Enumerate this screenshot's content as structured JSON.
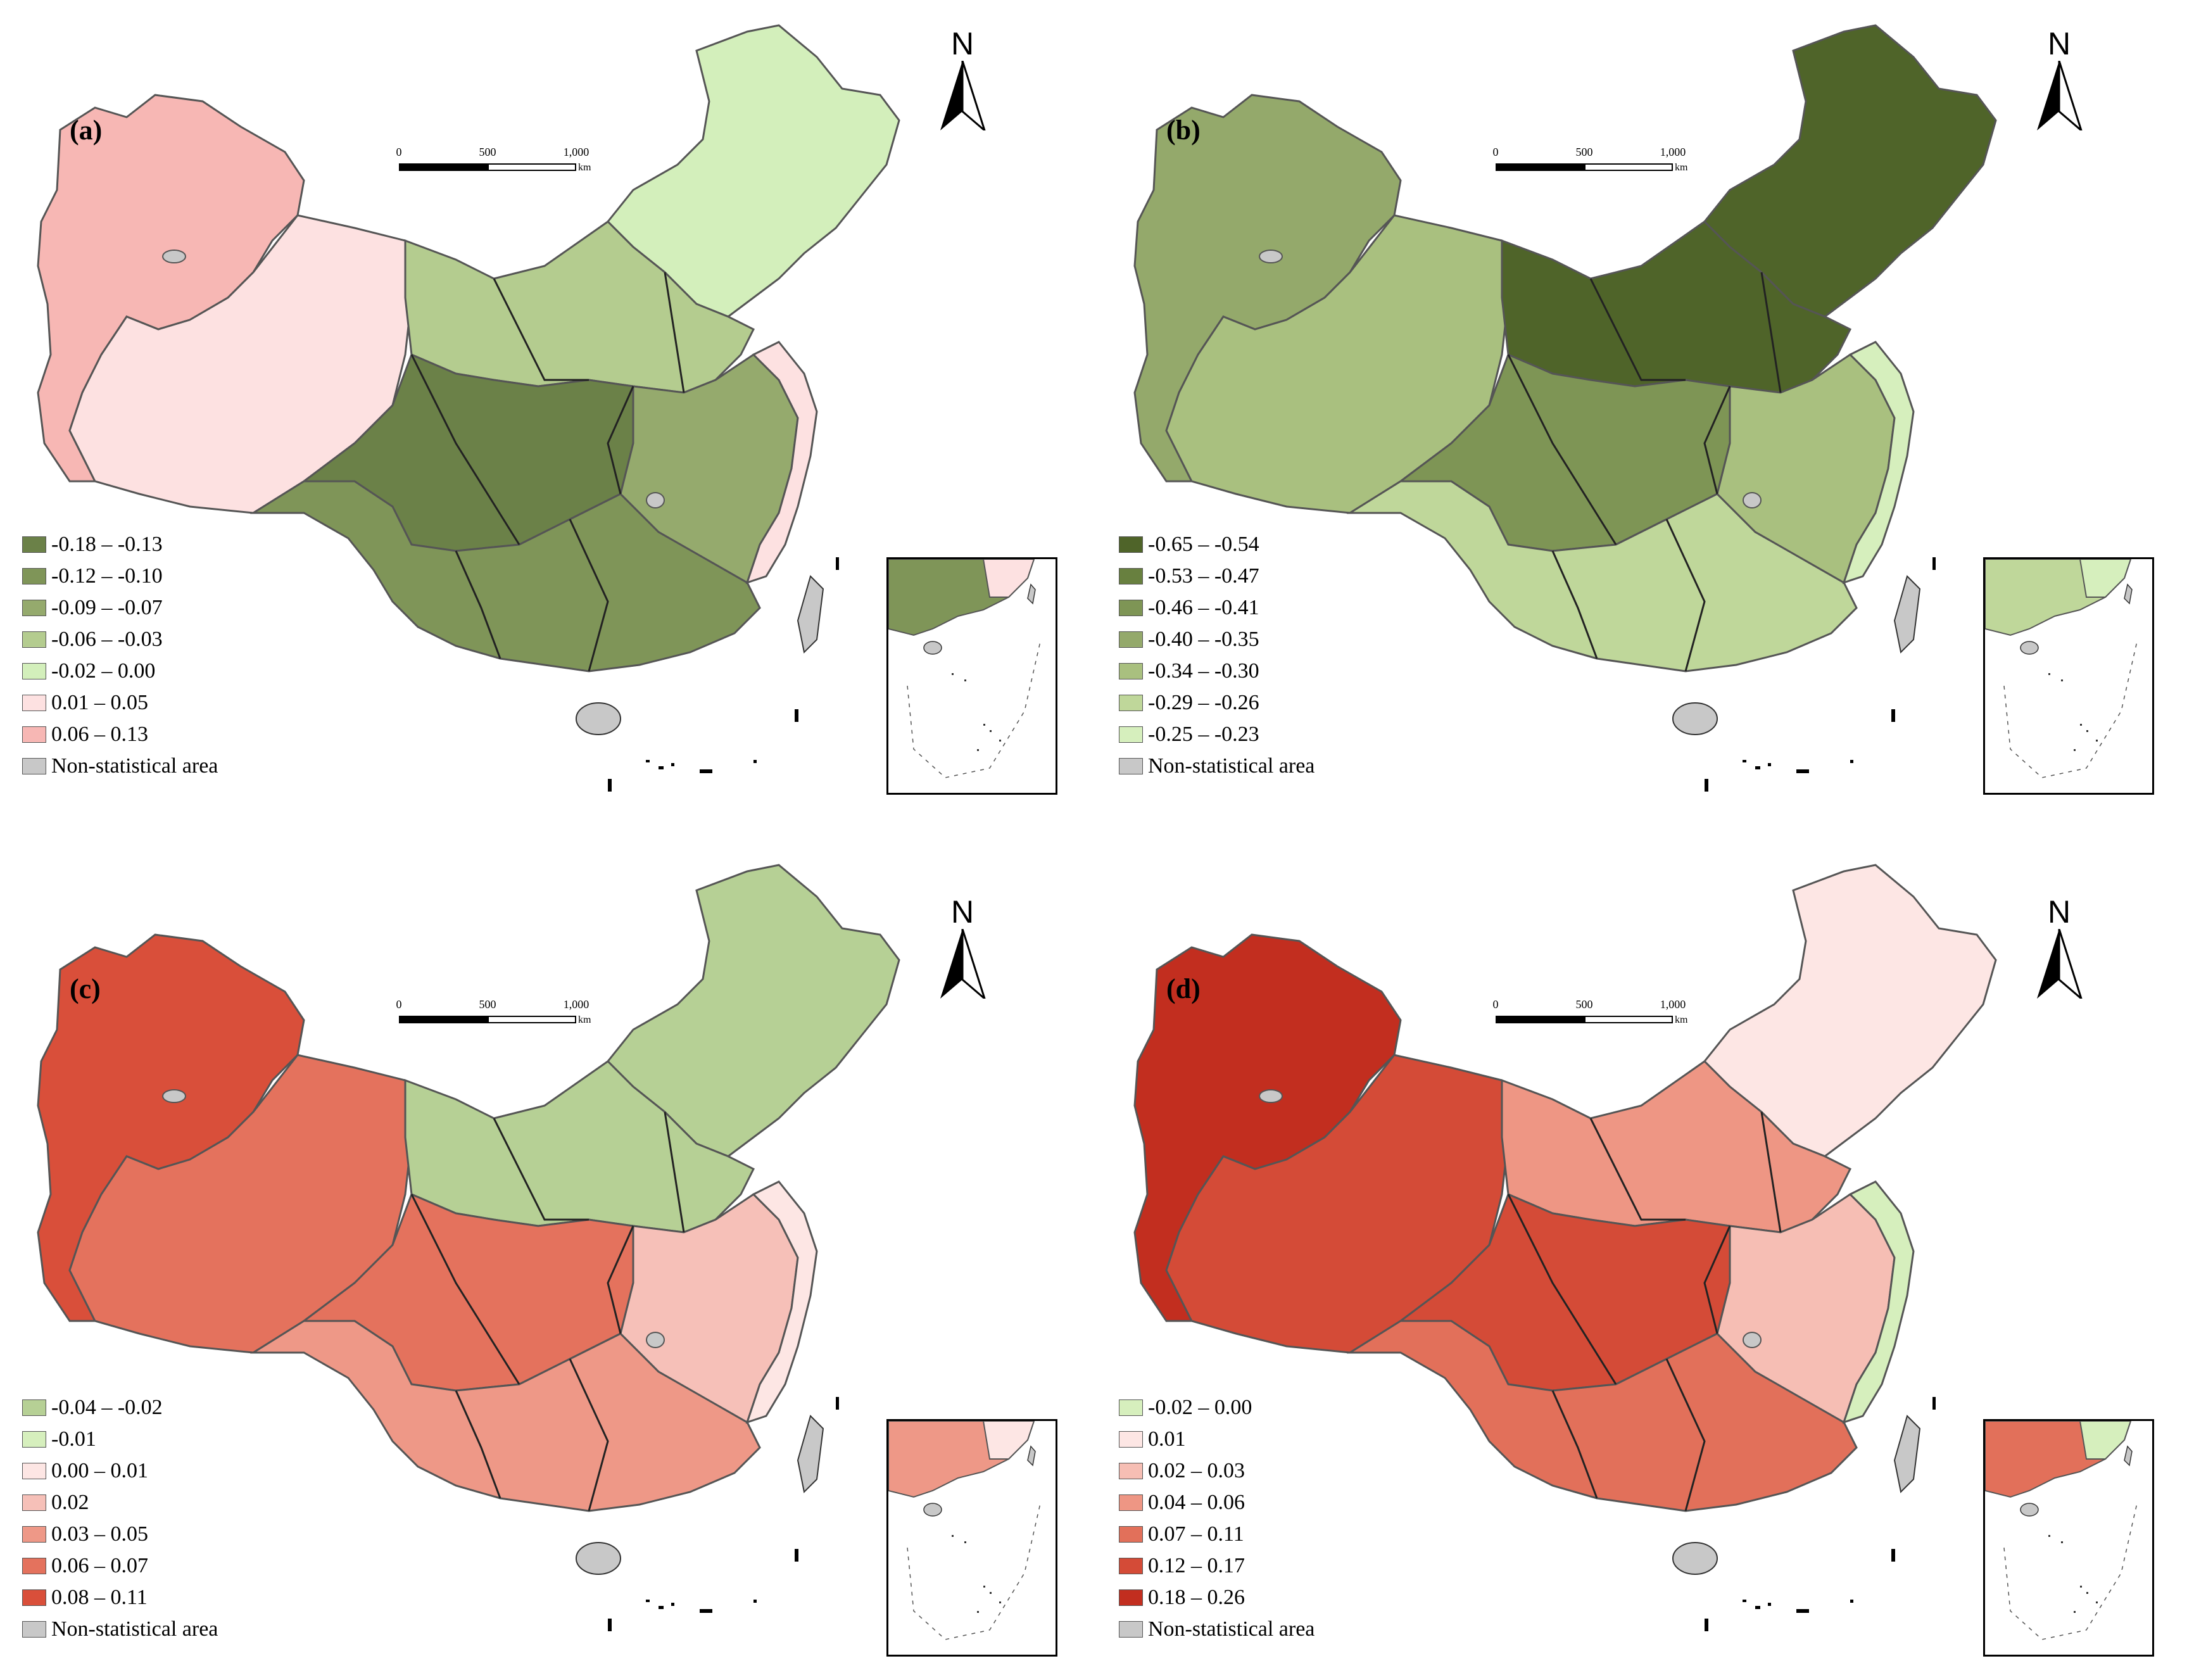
{
  "panels": [
    {
      "label": "(a)",
      "north": "N",
      "scale": {
        "ticks": [
          "0",
          "500",
          "1,000"
        ],
        "unit": "km"
      },
      "legend": [
        {
          "range": "-0.18 – -0.13",
          "color": "#6b8148"
        },
        {
          "range": "-0.12 – -0.10",
          "color": "#7f9558"
        },
        {
          "range": "-0.09 – -0.07",
          "color": "#95aa6d"
        },
        {
          "range": "-0.06 – -0.03",
          "color": "#b4cc8f"
        },
        {
          "range": "-0.02 – 0.00",
          "color": "#d3efbb"
        },
        {
          "range": "0.01 – 0.05",
          "color": "#fde1e1"
        },
        {
          "range": "0.06 – 0.13",
          "color": "#f7b7b4"
        },
        {
          "range": "Non-statistical area",
          "color": "#c8c8c8"
        }
      ],
      "fills": {
        "west": "#f7b7b4",
        "tibet_n": "#fde1e1",
        "northeast": "#d3efbb",
        "north": "#b4cc8f",
        "center": "#6b8148",
        "south": "#7f9558",
        "east": "#95aa6d",
        "coast": "#fde1e1"
      }
    },
    {
      "label": "(b)",
      "north": "N",
      "scale": {
        "ticks": [
          "0",
          "500",
          "1,000"
        ],
        "unit": "km"
      },
      "legend": [
        {
          "range": "-0.65 – -0.54",
          "color": "#4f6429"
        },
        {
          "range": "-0.53 – -0.47",
          "color": "#68803f"
        },
        {
          "range": "-0.46 – -0.41",
          "color": "#7e9555"
        },
        {
          "range": "-0.40 – -0.35",
          "color": "#94a96b"
        },
        {
          "range": "-0.34 – -0.30",
          "color": "#a9c07f"
        },
        {
          "range": "-0.29 – -0.26",
          "color": "#bfd79a"
        },
        {
          "range": "-0.25 – -0.23",
          "color": "#d6efbd"
        },
        {
          "range": "Non-statistical area",
          "color": "#c8c8c8"
        }
      ],
      "fills": {
        "west": "#94a96b",
        "tibet_n": "#a9c07f",
        "northeast": "#4f6429",
        "north": "#4f6429",
        "center": "#7e9555",
        "south": "#bfd79a",
        "east": "#a9c07f",
        "coast": "#d6efbd"
      }
    },
    {
      "label": "(c)",
      "north": "N",
      "scale": {
        "ticks": [
          "0",
          "500",
          "1,000"
        ],
        "unit": "km"
      },
      "legend": [
        {
          "range": "-0.04 – -0.02",
          "color": "#b6d095"
        },
        {
          "range": "-0.01",
          "color": "#d6efbd"
        },
        {
          "range": "0.00 – 0.01",
          "color": "#fde6e4"
        },
        {
          "range": "0.02",
          "color": "#f6c0b8"
        },
        {
          "range": "0.03 – 0.05",
          "color": "#ee9887"
        },
        {
          "range": "0.06 – 0.07",
          "color": "#e4725d"
        },
        {
          "range": "0.08 – 0.11",
          "color": "#d94f3a"
        },
        {
          "range": "Non-statistical area",
          "color": "#c8c8c8"
        }
      ],
      "fills": {
        "west": "#d94f3a",
        "tibet_n": "#e4725d",
        "northeast": "#b6d095",
        "north": "#b6d095",
        "center": "#e4725d",
        "south": "#ee9887",
        "east": "#f6c0b8",
        "coast": "#fde6e4"
      }
    },
    {
      "label": "(d)",
      "north": "N",
      "scale": {
        "ticks": [
          "0",
          "500",
          "1,000"
        ],
        "unit": "km"
      },
      "legend": [
        {
          "range": "-0.02 – 0.00",
          "color": "#d6efbd"
        },
        {
          "range": "0.01",
          "color": "#fde6e4"
        },
        {
          "range": "0.02 – 0.03",
          "color": "#f6beb4"
        },
        {
          "range": "0.04 – 0.06",
          "color": "#ee9684"
        },
        {
          "range": "0.07 – 0.11",
          "color": "#e2705a"
        },
        {
          "range": "0.12 – 0.17",
          "color": "#d44b37"
        },
        {
          "range": "0.18 – 0.26",
          "color": "#c22e1f"
        },
        {
          "range": "Non-statistical area",
          "color": "#c8c8c8"
        }
      ],
      "fills": {
        "west": "#c22e1f",
        "tibet_n": "#d44b37",
        "northeast": "#fde6e4",
        "north": "#ee9684",
        "center": "#d44b37",
        "south": "#e2705a",
        "east": "#f6beb4",
        "coast": "#d6efbd"
      }
    }
  ]
}
